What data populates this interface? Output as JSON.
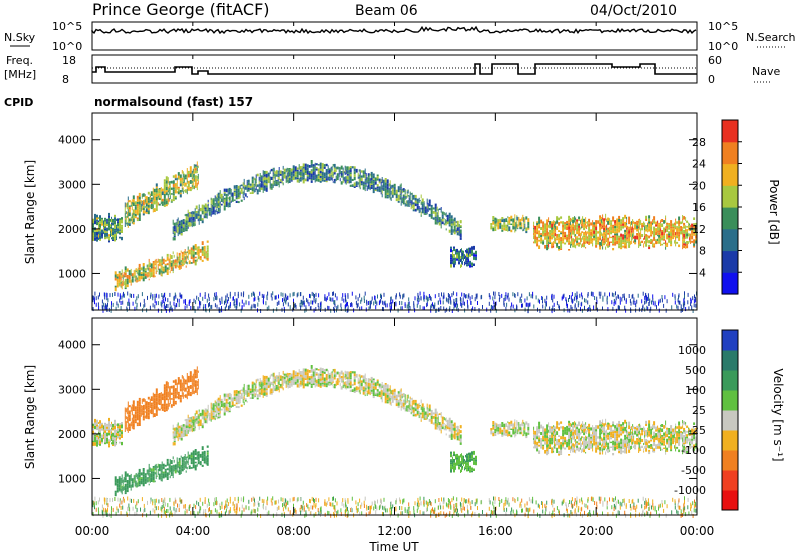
{
  "header": {
    "station": "Prince George (fitACF)",
    "beam": "Beam 06",
    "date": "04/Oct/2010"
  },
  "summary": {
    "nsky_label": "N.Sky",
    "nsearch_label": "N.Search",
    "nsky_ticks": [
      "10^5",
      "10^0"
    ],
    "nsearch_ticks": [
      "10^5",
      "10^0"
    ],
    "freq_label_1": "Freq.",
    "freq_label_2": "[MHz]",
    "freq_ticks": [
      "18",
      "8"
    ],
    "nave_label": "Nave",
    "nave_ticks": [
      "60",
      "0"
    ],
    "cpid_label": "CPID",
    "cpid_text": "normalsound (fast) 157"
  },
  "axes": {
    "xlabel": "Time UT",
    "x_ticks": [
      "00:00",
      "04:00",
      "08:00",
      "12:00",
      "16:00",
      "20:00",
      "00:00"
    ],
    "ylabel": "Slant Range [km]",
    "y_ticks": [
      "1000",
      "2000",
      "3000",
      "4000"
    ]
  },
  "colorbars": {
    "power": {
      "label": "Power [dB]",
      "ticks": [
        "4",
        "8",
        "12",
        "16",
        "20",
        "24",
        "28"
      ],
      "colors": [
        "#1010ee",
        "#1a3aa8",
        "#2a6e8a",
        "#3a8e5a",
        "#a8c840",
        "#f0b020",
        "#f08020",
        "#e83020"
      ]
    },
    "velocity": {
      "label": "Velocity [m s⁻¹]",
      "ticks": [
        "1000",
        "500",
        "100",
        "25",
        "-25",
        "-100",
        "-500",
        "-1000"
      ],
      "colors": [
        "#2040c0",
        "#2a7a6a",
        "#3a9a5a",
        "#60c040",
        "#c8c8c0",
        "#f0b020",
        "#f08020",
        "#f04020",
        "#e81010"
      ]
    }
  },
  "chart_data": [
    {
      "type": "heatmap",
      "title": "Power",
      "x_range_hours": [
        0,
        24
      ],
      "y_range_km": [
        180,
        4600
      ],
      "colorbar_label": "Power [dB]",
      "colorbar_range": [
        0,
        32
      ],
      "echo_bands": [
        {
          "t_start": 0,
          "t_end": 1.2,
          "range_km": 2000,
          "thickness_km": 500,
          "power_db": 14
        },
        {
          "t_start": 0.9,
          "t_end": 4.6,
          "range_km": 1100,
          "thickness_km": 350,
          "power_db": 20
        },
        {
          "t_start": 1.3,
          "t_end": 4.2,
          "range_km": 2650,
          "thickness_km": 500,
          "power_db": 18
        },
        {
          "t_start": 3.2,
          "t_end": 14.6,
          "range_km": 2700,
          "thickness_km": 350,
          "power_db": 12
        },
        {
          "t_start": 14.2,
          "t_end": 15.2,
          "range_km": 1350,
          "thickness_km": 350,
          "power_db": 10
        },
        {
          "t_start": 15.8,
          "t_end": 17.3,
          "range_km": 2100,
          "thickness_km": 300,
          "power_db": 16
        },
        {
          "t_start": 17.5,
          "t_end": 24,
          "range_km": 1900,
          "thickness_km": 600,
          "power_db": 22
        }
      ]
    },
    {
      "type": "heatmap",
      "title": "Velocity",
      "x_range_hours": [
        0,
        24
      ],
      "y_range_km": [
        180,
        4600
      ],
      "colorbar_label": "Velocity [m s⁻¹]",
      "echo_bands": [
        {
          "t_start": 0,
          "t_end": 1.2,
          "range_km": 2000,
          "thickness_km": 500,
          "velocity_ms": 0
        },
        {
          "t_start": 0.9,
          "t_end": 4.6,
          "range_km": 1100,
          "thickness_km": 350,
          "velocity_ms": 150
        },
        {
          "t_start": 1.3,
          "t_end": 4.2,
          "range_km": 2650,
          "thickness_km": 500,
          "velocity_ms": -300
        },
        {
          "t_start": 3.2,
          "t_end": 14.6,
          "range_km": 2700,
          "thickness_km": 350,
          "velocity_ms": 0
        },
        {
          "t_start": 14.2,
          "t_end": 15.2,
          "range_km": 1350,
          "thickness_km": 350,
          "velocity_ms": 80
        },
        {
          "t_start": 15.8,
          "t_end": 17.3,
          "range_km": 2100,
          "thickness_km": 300,
          "velocity_ms": 0
        },
        {
          "t_start": 17.5,
          "t_end": 24,
          "range_km": 1900,
          "thickness_km": 600,
          "velocity_ms": 0
        }
      ]
    }
  ]
}
